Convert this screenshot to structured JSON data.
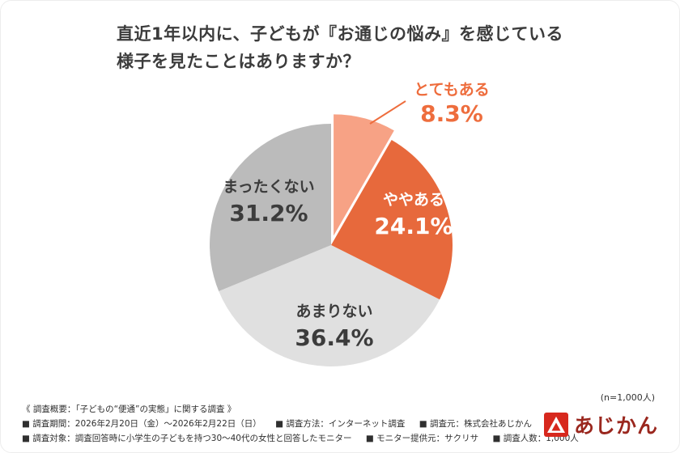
{
  "title": {
    "line1": "直近1年以内に、子どもが『お通じの悩み』を感じている",
    "line2": "様子を見たことはありますか？"
  },
  "chart_data": {
    "type": "pie",
    "title": "直近1年以内に、子どもが『お通じの悩み』を感じている様子を見たことはありますか？",
    "unit": "%",
    "start": "top",
    "direction": "clockwise",
    "legend": "none",
    "sample_note": "(n=1,000人)",
    "segments": [
      {
        "label": "とてもある",
        "value": 8.3,
        "color": "#F7A285",
        "label_color": "#EE6D3D",
        "label_placement": "outside",
        "exploded": true
      },
      {
        "label": "ややある",
        "value": 24.1,
        "color": "#E7693C",
        "label_color": "#FFFFFF",
        "label_placement": "inside",
        "exploded": false
      },
      {
        "label": "あまりない",
        "value": 36.4,
        "color": "#E0E0E0",
        "label_color": "#3C3C3C",
        "label_placement": "inside",
        "exploded": false
      },
      {
        "label": "まったくない",
        "value": 31.2,
        "color": "#BBBBBB",
        "label_color": "#3C3C3C",
        "label_placement": "inside",
        "exploded": false
      }
    ]
  },
  "footer": {
    "overview": "《 調査概要：「子どもの“便通”の実態」に関する調査 》",
    "line2_items": [
      "■ 調査期間：2026年2月20日（金）〜2026年2月22日（日）",
      "■ 調査方法：インターネット調査",
      "■ 調査元：株式会社あじかん"
    ],
    "line3_items": [
      "■ 調査対象：調査回答時に小学生の子どもを持つ30〜40代の女性と回答したモニター",
      "■ モニター提供元：サクリサ",
      "■ 調査人数：1,000人"
    ]
  },
  "logo": {
    "text": "あじかん",
    "brand_red": "#D7281D",
    "text_color": "#9A271E"
  }
}
